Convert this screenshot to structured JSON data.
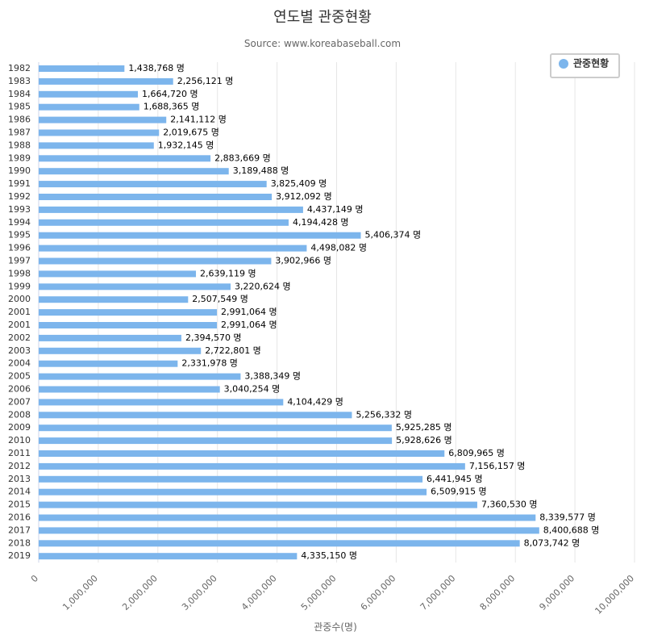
{
  "chart_data": {
    "type": "bar",
    "orientation": "horizontal",
    "title": "연도별 관중현황",
    "subtitle": "Source: www.koreabaseball.com",
    "xlabel": "관중수(명)",
    "ylabel": "",
    "value_suffix": " 명",
    "xlim": [
      0,
      10000000
    ],
    "x_ticks": [
      "0",
      "1,000,000",
      "2,000,000",
      "3,000,000",
      "4,000,000",
      "5,000,000",
      "6,000,000",
      "7,000,000",
      "8,000,000",
      "9,000,000",
      "10,000,000"
    ],
    "grid": true,
    "legend_position": "top-right",
    "bar_color": "#7cb5ec",
    "categories": [
      "1982",
      "1983",
      "1984",
      "1985",
      "1986",
      "1987",
      "1988",
      "1989",
      "1990",
      "1991",
      "1992",
      "1993",
      "1994",
      "1995",
      "1996",
      "1997",
      "1998",
      "1999",
      "2000",
      "2001",
      "2001",
      "2002",
      "2003",
      "2004",
      "2005",
      "2006",
      "2007",
      "2008",
      "2009",
      "2010",
      "2011",
      "2012",
      "2013",
      "2014",
      "2015",
      "2016",
      "2017",
      "2018",
      "2019"
    ],
    "series": [
      {
        "name": "관중현황",
        "values": [
          1438768,
          2256121,
          1664720,
          1688365,
          2141112,
          2019675,
          1932145,
          2883669,
          3189488,
          3825409,
          3912092,
          4437149,
          4194428,
          5406374,
          4498082,
          3902966,
          2639119,
          3220624,
          2507549,
          2991064,
          2991064,
          2394570,
          2722801,
          2331978,
          3388349,
          3040254,
          4104429,
          5256332,
          5925285,
          5928626,
          6809965,
          7156157,
          6441945,
          6509915,
          7360530,
          8339577,
          8400688,
          8073742,
          4335150
        ]
      }
    ]
  }
}
